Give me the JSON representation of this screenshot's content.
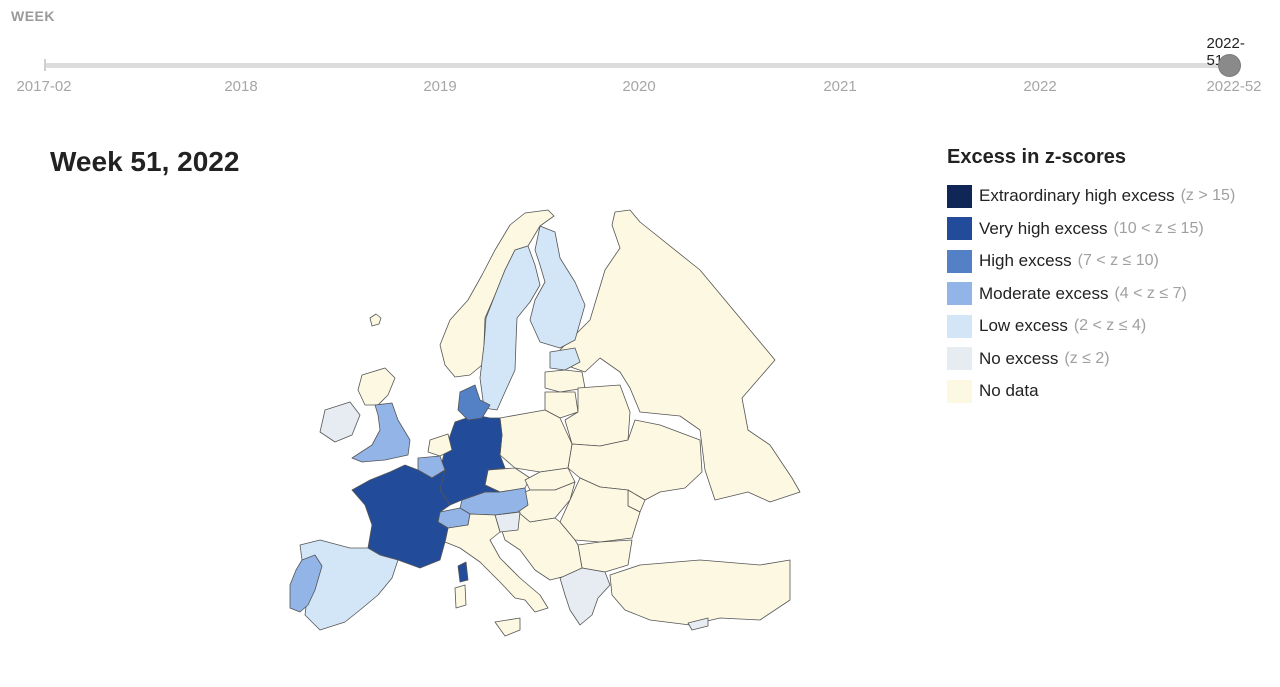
{
  "timeline": {
    "label": "WEEK",
    "ticks": [
      "2017-02",
      "2018",
      "2019",
      "2020",
      "2021",
      "2022",
      "2022-52"
    ],
    "selected": "2022-51"
  },
  "map": {
    "title": "Week 51, 2022"
  },
  "legend": {
    "title": "Excess in z-scores",
    "items": [
      {
        "label": "Extraordinary high excess",
        "range": "(z > 15)",
        "color": "#0f2657"
      },
      {
        "label": "Very high excess",
        "range": "(10 < z ≤ 15)",
        "color": "#224c9a"
      },
      {
        "label": "High excess",
        "range": "(7 < z ≤ 10)",
        "color": "#5480c6"
      },
      {
        "label": "Moderate excess",
        "range": "(4 < z ≤ 7)",
        "color": "#92b4e6"
      },
      {
        "label": "Low excess",
        "range": "(2 < z ≤ 4)",
        "color": "#d3e6f7"
      },
      {
        "label": "No excess",
        "range": "(z ≤ 2)",
        "color": "#e6ecf1"
      },
      {
        "label": "No data",
        "range": "",
        "color": "#fdf8e2"
      }
    ]
  },
  "countries": [
    {
      "name": "France",
      "category": "Very high excess"
    },
    {
      "name": "Germany",
      "category": "Very high excess"
    },
    {
      "name": "Denmark",
      "category": "High excess"
    },
    {
      "name": "Corsica",
      "category": "Very high excess"
    },
    {
      "name": "United Kingdom",
      "category": "Moderate excess"
    },
    {
      "name": "Portugal",
      "category": "Moderate excess"
    },
    {
      "name": "Austria",
      "category": "Moderate excess"
    },
    {
      "name": "Switzerland",
      "category": "Moderate excess"
    },
    {
      "name": "Belgium",
      "category": "Moderate excess"
    },
    {
      "name": "Spain",
      "category": "Low excess"
    },
    {
      "name": "Sweden",
      "category": "Low excess"
    },
    {
      "name": "Finland",
      "category": "Low excess"
    },
    {
      "name": "Estonia",
      "category": "Low excess"
    },
    {
      "name": "Ireland",
      "category": "No excess"
    },
    {
      "name": "Greece",
      "category": "No excess"
    },
    {
      "name": "Slovenia",
      "category": "No excess"
    },
    {
      "name": "Cyprus",
      "category": "No excess"
    },
    {
      "name": "Norway",
      "category": "No data"
    },
    {
      "name": "Italy",
      "category": "No data"
    },
    {
      "name": "Sicily",
      "category": "No data"
    },
    {
      "name": "Sardinia",
      "category": "No data"
    },
    {
      "name": "Netherlands",
      "category": "No data"
    },
    {
      "name": "Scotland",
      "category": "No data"
    },
    {
      "name": "Ukraine",
      "category": "No data"
    },
    {
      "name": "Hungary",
      "category": "No data"
    },
    {
      "name": "Moldova",
      "category": "No data"
    },
    {
      "name": "Poland",
      "category": "No data"
    },
    {
      "name": "Czechia",
      "category": "No data"
    },
    {
      "name": "Slovakia",
      "category": "No data"
    },
    {
      "name": "Belarus",
      "category": "No data"
    },
    {
      "name": "Romania",
      "category": "No data"
    },
    {
      "name": "Bulgaria",
      "category": "No data"
    },
    {
      "name": "Balkans",
      "category": "No data"
    },
    {
      "name": "Latvia",
      "category": "No data"
    },
    {
      "name": "Lithuania",
      "category": "No data"
    },
    {
      "name": "Turkey",
      "category": "No data"
    },
    {
      "name": "Russia",
      "category": "No data"
    },
    {
      "name": "Iceland",
      "category": "No data"
    }
  ]
}
